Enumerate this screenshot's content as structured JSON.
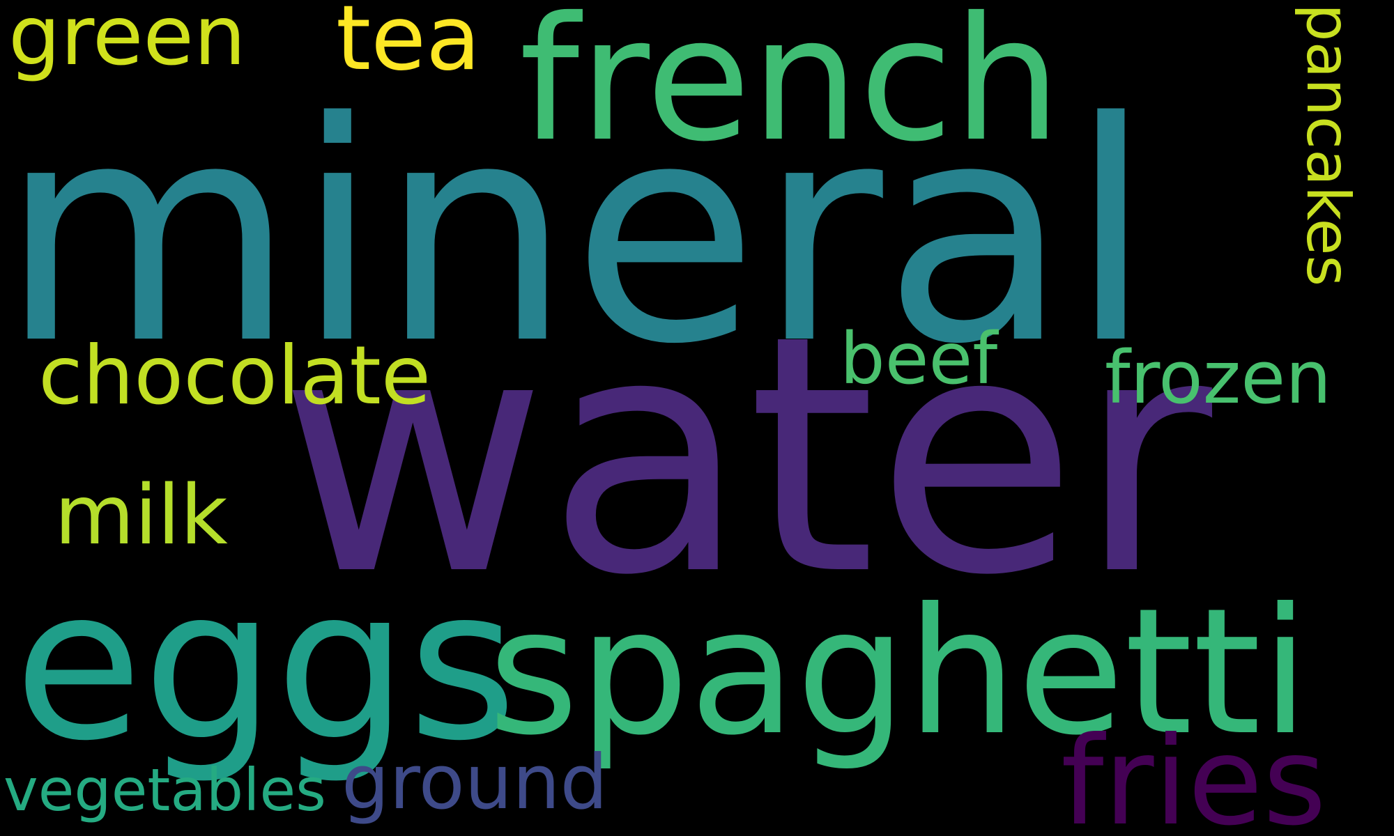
{
  "background_color": "#000000",
  "words": [
    {
      "id": "mineral",
      "text": "mineral",
      "color": "#26828E"
    },
    {
      "id": "water",
      "text": "water",
      "color": "#482878"
    },
    {
      "id": "french",
      "text": "french",
      "color": "#3FBC73"
    },
    {
      "id": "eggs",
      "text": "eggs",
      "color": "#1F9E89"
    },
    {
      "id": "spaghetti",
      "text": "spaghetti",
      "color": "#35B779"
    },
    {
      "id": "fries",
      "text": "fries",
      "color": "#440154"
    },
    {
      "id": "green",
      "text": "green",
      "color": "#D0E11C"
    },
    {
      "id": "tea",
      "text": "tea",
      "color": "#FDE725"
    },
    {
      "id": "chocolate",
      "text": "chocolate",
      "color": "#C2DF23"
    },
    {
      "id": "milk",
      "text": "milk",
      "color": "#B5DE2B"
    },
    {
      "id": "beef",
      "text": "beef",
      "color": "#4AC16D"
    },
    {
      "id": "frozen",
      "text": "frozen",
      "color": "#48C16E"
    },
    {
      "id": "pancakes",
      "text": "pancakes",
      "color": "#C8E020"
    },
    {
      "id": "ground",
      "text": "ground",
      "color": "#3E4A89"
    },
    {
      "id": "vegetables",
      "text": "vegetables",
      "color": "#25AB82"
    }
  ]
}
